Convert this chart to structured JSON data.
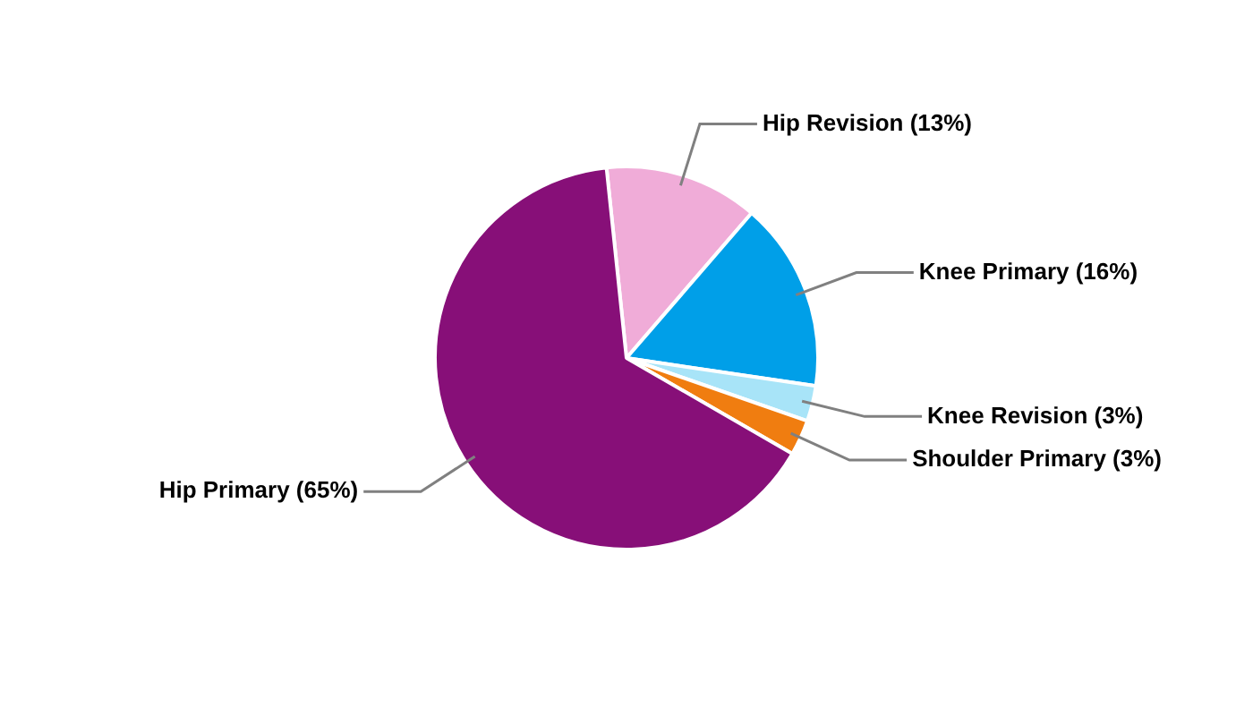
{
  "chart_data": {
    "type": "pie",
    "categories": [
      "Hip Revision (13%)",
      "Knee Primary (16%)",
      "Knee Revision (3%)",
      "Shoulder Primary (3%)",
      "Hip Primary (65%)"
    ],
    "values": [
      13,
      16,
      3,
      3,
      65
    ],
    "colors": [
      "#f0acd8",
      "#009fe8",
      "#a8e4f8",
      "#f07d10",
      "#870f78"
    ],
    "legend": false
  }
}
